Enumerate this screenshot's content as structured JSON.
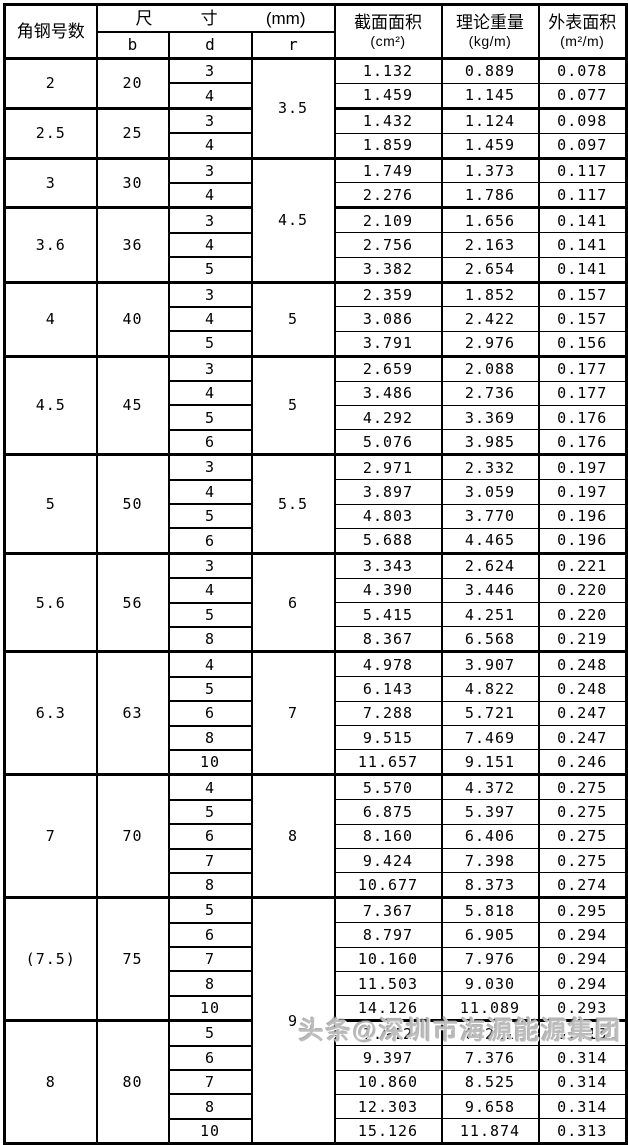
{
  "table": {
    "header": {
      "angle_number": "角钢号数",
      "size_group_parts": [
        "尺",
        "寸",
        "(mm)"
      ],
      "sub_cols": [
        "b",
        "d",
        "r"
      ],
      "area": {
        "title": "截面面积",
        "unit": "(cm²)"
      },
      "weight": {
        "title": "理论重量",
        "unit": "(kg/m)"
      },
      "surface": {
        "title": "外表面积",
        "unit": "(m²/m)"
      }
    },
    "r_spans": [
      {
        "value": "3.5",
        "rows": 4
      },
      {
        "value": "4.5",
        "rows": 5
      },
      {
        "value": "5",
        "rows": 3
      },
      {
        "value": "5",
        "rows": 4
      },
      {
        "value": "5.5",
        "rows": 4
      },
      {
        "value": "6",
        "rows": 4
      },
      {
        "value": "7",
        "rows": 5
      },
      {
        "value": "8",
        "rows": 5
      },
      {
        "value": "9",
        "rows": 10
      }
    ],
    "groups": [
      {
        "no": "2",
        "b": "20",
        "rows": [
          {
            "d": "3",
            "area": "1.132",
            "weight": "0.889",
            "surface": "0.078"
          },
          {
            "d": "4",
            "area": "1.459",
            "weight": "1.145",
            "surface": "0.077"
          }
        ]
      },
      {
        "no": "2.5",
        "b": "25",
        "rows": [
          {
            "d": "3",
            "area": "1.432",
            "weight": "1.124",
            "surface": "0.098"
          },
          {
            "d": "4",
            "area": "1.859",
            "weight": "1.459",
            "surface": "0.097"
          }
        ]
      },
      {
        "no": "3",
        "b": "30",
        "rows": [
          {
            "d": "3",
            "area": "1.749",
            "weight": "1.373",
            "surface": "0.117"
          },
          {
            "d": "4",
            "area": "2.276",
            "weight": "1.786",
            "surface": "0.117"
          }
        ]
      },
      {
        "no": "3.6",
        "b": "36",
        "rows": [
          {
            "d": "3",
            "area": "2.109",
            "weight": "1.656",
            "surface": "0.141"
          },
          {
            "d": "4",
            "area": "2.756",
            "weight": "2.163",
            "surface": "0.141"
          },
          {
            "d": "5",
            "area": "3.382",
            "weight": "2.654",
            "surface": "0.141"
          }
        ]
      },
      {
        "no": "4",
        "b": "40",
        "rows": [
          {
            "d": "3",
            "area": "2.359",
            "weight": "1.852",
            "surface": "0.157"
          },
          {
            "d": "4",
            "area": "3.086",
            "weight": "2.422",
            "surface": "0.157"
          },
          {
            "d": "5",
            "area": "3.791",
            "weight": "2.976",
            "surface": "0.156"
          }
        ]
      },
      {
        "no": "4.5",
        "b": "45",
        "rows": [
          {
            "d": "3",
            "area": "2.659",
            "weight": "2.088",
            "surface": "0.177"
          },
          {
            "d": "4",
            "area": "3.486",
            "weight": "2.736",
            "surface": "0.177"
          },
          {
            "d": "5",
            "area": "4.292",
            "weight": "3.369",
            "surface": "0.176"
          },
          {
            "d": "6",
            "area": "5.076",
            "weight": "3.985",
            "surface": "0.176"
          }
        ]
      },
      {
        "no": "5",
        "b": "50",
        "rows": [
          {
            "d": "3",
            "area": "2.971",
            "weight": "2.332",
            "surface": "0.197"
          },
          {
            "d": "4",
            "area": "3.897",
            "weight": "3.059",
            "surface": "0.197"
          },
          {
            "d": "5",
            "area": "4.803",
            "weight": "3.770",
            "surface": "0.196"
          },
          {
            "d": "6",
            "area": "5.688",
            "weight": "4.465",
            "surface": "0.196"
          }
        ]
      },
      {
        "no": "5.6",
        "b": "56",
        "rows": [
          {
            "d": "3",
            "area": "3.343",
            "weight": "2.624",
            "surface": "0.221"
          },
          {
            "d": "4",
            "area": "4.390",
            "weight": "3.446",
            "surface": "0.220"
          },
          {
            "d": "5",
            "area": "5.415",
            "weight": "4.251",
            "surface": "0.220"
          },
          {
            "d": "8",
            "area": "8.367",
            "weight": "6.568",
            "surface": "0.219"
          }
        ]
      },
      {
        "no": "6.3",
        "b": "63",
        "rows": [
          {
            "d": "4",
            "area": "4.978",
            "weight": "3.907",
            "surface": "0.248"
          },
          {
            "d": "5",
            "area": "6.143",
            "weight": "4.822",
            "surface": "0.248"
          },
          {
            "d": "6",
            "area": "7.288",
            "weight": "5.721",
            "surface": "0.247"
          },
          {
            "d": "8",
            "area": "9.515",
            "weight": "7.469",
            "surface": "0.247"
          },
          {
            "d": "10",
            "area": "11.657",
            "weight": "9.151",
            "surface": "0.246"
          }
        ]
      },
      {
        "no": "7",
        "b": "70",
        "rows": [
          {
            "d": "4",
            "area": "5.570",
            "weight": "4.372",
            "surface": "0.275"
          },
          {
            "d": "5",
            "area": "6.875",
            "weight": "5.397",
            "surface": "0.275"
          },
          {
            "d": "6",
            "area": "8.160",
            "weight": "6.406",
            "surface": "0.275"
          },
          {
            "d": "7",
            "area": "9.424",
            "weight": "7.398",
            "surface": "0.275"
          },
          {
            "d": "8",
            "area": "10.677",
            "weight": "8.373",
            "surface": "0.274"
          }
        ]
      },
      {
        "no": "(7.5)",
        "b": "75",
        "rows": [
          {
            "d": "5",
            "area": "7.367",
            "weight": "5.818",
            "surface": "0.295"
          },
          {
            "d": "6",
            "area": "8.797",
            "weight": "6.905",
            "surface": "0.294"
          },
          {
            "d": "7",
            "area": "10.160",
            "weight": "7.976",
            "surface": "0.294"
          },
          {
            "d": "8",
            "area": "11.503",
            "weight": "9.030",
            "surface": "0.294"
          },
          {
            "d": "10",
            "area": "14.126",
            "weight": "11.089",
            "surface": "0.293"
          }
        ]
      },
      {
        "no": "8",
        "b": "80",
        "rows": [
          {
            "d": "5",
            "area": "7.912",
            "weight": "6.211",
            "surface": "0.315"
          },
          {
            "d": "6",
            "area": "9.397",
            "weight": "7.376",
            "surface": "0.314"
          },
          {
            "d": "7",
            "area": "10.860",
            "weight": "8.525",
            "surface": "0.314"
          },
          {
            "d": "8",
            "area": "12.303",
            "weight": "9.658",
            "surface": "0.314"
          },
          {
            "d": "10",
            "area": "15.126",
            "weight": "11.874",
            "surface": "0.313"
          }
        ]
      }
    ]
  },
  "watermark": {
    "text": "头条@深圳市海源能源集团"
  }
}
